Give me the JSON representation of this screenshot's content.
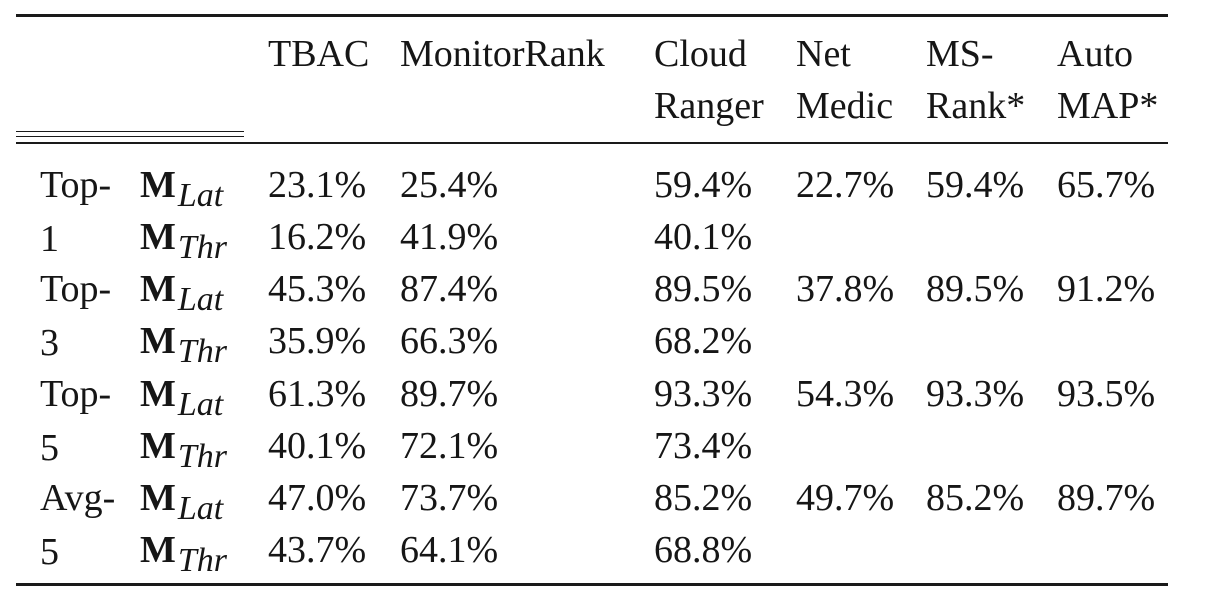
{
  "table": {
    "headers": {
      "tbac": [
        "TBAC"
      ],
      "monitorrank": [
        "MonitorRank"
      ],
      "cloudranger": [
        "Cloud",
        "Ranger"
      ],
      "netmedic": [
        "Net",
        "Medic"
      ],
      "msrank": [
        "MS-",
        "Rank*"
      ],
      "automap": [
        "Auto",
        "MAP*"
      ]
    },
    "groups": [
      {
        "label": [
          "Top-",
          "1"
        ],
        "rows": [
          {
            "metric": "M",
            "sub": "Lat",
            "tbac": "23.1%",
            "monitorrank": "25.4%",
            "cloudranger": "59.4%",
            "netmedic": "22.7%",
            "msrank": "59.4%",
            "automap": "65.7%"
          },
          {
            "metric": "M",
            "sub": "Thr",
            "tbac": "16.2%",
            "monitorrank": "41.9%",
            "cloudranger": "40.1%",
            "netmedic": "",
            "msrank": "",
            "automap": ""
          }
        ]
      },
      {
        "label": [
          "Top-",
          "3"
        ],
        "rows": [
          {
            "metric": "M",
            "sub": "Lat",
            "tbac": "45.3%",
            "monitorrank": "87.4%",
            "cloudranger": "89.5%",
            "netmedic": "37.8%",
            "msrank": "89.5%",
            "automap": "91.2%"
          },
          {
            "metric": "M",
            "sub": "Thr",
            "tbac": "35.9%",
            "monitorrank": "66.3%",
            "cloudranger": "68.2%",
            "netmedic": "",
            "msrank": "",
            "automap": ""
          }
        ]
      },
      {
        "label": [
          "Top-",
          "5"
        ],
        "rows": [
          {
            "metric": "M",
            "sub": "Lat",
            "tbac": "61.3%",
            "monitorrank": "89.7%",
            "cloudranger": "93.3%",
            "netmedic": "54.3%",
            "msrank": "93.3%",
            "automap": "93.5%"
          },
          {
            "metric": "M",
            "sub": "Thr",
            "tbac": "40.1%",
            "monitorrank": "72.1%",
            "cloudranger": "73.4%",
            "netmedic": "",
            "msrank": "",
            "automap": ""
          }
        ]
      },
      {
        "label": [
          "Avg-",
          "5"
        ],
        "rows": [
          {
            "metric": "M",
            "sub": "Lat",
            "tbac": "47.0%",
            "monitorrank": "73.7%",
            "cloudranger": "85.2%",
            "netmedic": "49.7%",
            "msrank": "85.2%",
            "automap": "89.7%"
          },
          {
            "metric": "M",
            "sub": "Thr",
            "tbac": "43.7%",
            "monitorrank": "64.1%",
            "cloudranger": "68.8%",
            "netmedic": "",
            "msrank": "",
            "automap": ""
          }
        ]
      }
    ]
  }
}
